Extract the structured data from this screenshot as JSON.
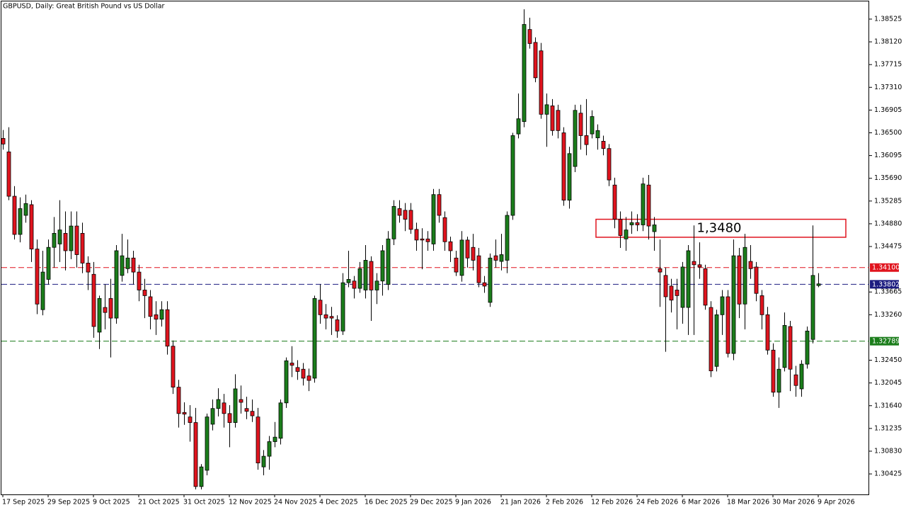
{
  "chart_data": {
    "type": "candlestick",
    "title": "GBPUSD, Daily:  Great British Pound vs US Dollar",
    "categories": [
      "17 Sep 2025",
      null,
      null,
      null,
      null,
      null,
      null,
      null,
      "29 Sep 2025",
      null,
      null,
      null,
      null,
      null,
      null,
      null,
      "9 Oct 2025",
      null,
      null,
      null,
      null,
      null,
      null,
      null,
      "21 Oct 2025",
      null,
      null,
      null,
      null,
      null,
      null,
      null,
      "31 Oct 2025",
      null,
      null,
      null,
      null,
      null,
      null,
      null,
      "12 Nov 2025",
      null,
      null,
      null,
      null,
      null,
      null,
      null,
      "24 Nov 2025",
      null,
      null,
      null,
      null,
      null,
      null,
      null,
      "4 Dec 2025",
      null,
      null,
      null,
      null,
      null,
      null,
      null,
      "16 Dec 2025",
      null,
      null,
      null,
      null,
      null,
      null,
      null,
      "29 Dec 2025",
      null,
      null,
      null,
      null,
      null,
      null,
      null,
      "9 Jan 2026",
      null,
      null,
      null,
      null,
      null,
      null,
      null,
      "21 Jan 2026",
      null,
      null,
      null,
      null,
      null,
      null,
      null,
      "2 Feb 2026",
      null,
      null,
      null,
      null,
      null,
      null,
      null,
      "12 Feb 2026",
      null,
      null,
      null,
      null,
      null,
      null,
      null,
      "24 Feb 2026",
      null,
      null,
      null,
      null,
      null,
      null,
      null,
      "6 Mar 2026",
      null,
      null,
      null,
      null,
      null,
      null,
      null,
      "18 Mar 2026",
      null,
      null,
      null,
      null,
      null,
      null,
      null,
      "30 Mar 2026",
      null,
      null,
      null,
      null,
      null,
      null,
      null,
      "9 Apr 2026"
    ],
    "open": [
      1.364,
      1.3616,
      1.3537,
      1.3469,
      1.3503,
      1.3522,
      1.3443,
      1.3335,
      1.3389,
      1.3446,
      1.3452,
      1.3471,
      1.344,
      1.3484,
      1.3471,
      1.3418,
      1.3398,
      1.3295,
      1.3339,
      1.3355,
      1.332,
      1.3396,
      1.3408,
      1.3427,
      1.3402,
      1.337,
      1.3358,
      1.3326,
      1.3318,
      1.3335,
      1.327,
      1.3197,
      1.3152,
      1.3144,
      1.3134,
      1.302,
      1.3049,
      1.3131,
      1.3159,
      1.3169,
      1.315,
      1.3134,
      1.3175,
      1.3159,
      1.3154,
      1.3144,
      1.3055,
      1.3074,
      1.31,
      1.3106,
      1.3169,
      1.324,
      1.3232,
      1.3229,
      1.3217,
      1.3213,
      1.3352,
      1.3326,
      1.3323,
      1.3317,
      1.3297,
      1.3383,
      1.3386,
      1.3373,
      1.337,
      1.3421,
      1.337,
      1.3386,
      1.338,
      1.3461,
      1.3515,
      1.3512,
      1.3512,
      1.3478,
      1.3461,
      1.3461,
      1.3452,
      1.354,
      1.3499,
      1.3456,
      1.3427,
      1.3396,
      1.3459,
      1.3446,
      1.3431,
      1.3383,
      1.3348,
      1.3431,
      1.3421,
      1.3423,
      1.3503,
      1.3648,
      1.367,
      1.3834,
      1.3811,
      1.3796,
      1.3683,
      1.3698,
      1.369,
      1.365,
      1.353,
      1.359,
      1.3685,
      1.3645,
      1.3648,
      1.3641,
      1.3635,
      1.3622,
      1.3557,
      1.3496,
      1.3461,
      1.3486,
      1.349,
      1.3486,
      1.3557,
      1.3474,
      1.3408,
      1.3396,
      1.3377,
      1.337,
      1.3339,
      1.3339,
      1.3421,
      1.3415,
      1.3408,
      1.3339,
      1.3234,
      1.3326,
      1.3358,
      1.3257,
      1.3431,
      1.3345,
      1.3421,
      1.3411,
      1.336,
      1.3326,
      1.3263,
      1.3188,
      1.3232,
      1.3305,
      1.3219,
      1.3194,
      1.3238,
      1.3282,
      1.3378
    ],
    "high": [
      1.3655,
      1.366,
      1.3555,
      1.3535,
      1.354,
      1.353,
      1.346,
      1.344,
      1.346,
      1.35,
      1.353,
      1.351,
      1.351,
      1.351,
      1.349,
      1.343,
      1.342,
      1.336,
      1.338,
      1.339,
      1.345,
      1.347,
      1.346,
      1.344,
      1.3415,
      1.339,
      1.337,
      1.335,
      1.335,
      1.335,
      1.328,
      1.321,
      1.317,
      1.3165,
      1.316,
      1.306,
      1.315,
      1.3175,
      1.3195,
      1.3185,
      1.3165,
      1.322,
      1.32,
      1.318,
      1.3175,
      1.316,
      1.3085,
      1.311,
      1.3135,
      1.3175,
      1.325,
      1.327,
      1.3245,
      1.324,
      1.323,
      1.336,
      1.338,
      1.3345,
      1.334,
      1.3325,
      1.34,
      1.344,
      1.3395,
      1.342,
      1.345,
      1.343,
      1.34,
      1.345,
      1.3475,
      1.353,
      1.353,
      1.3525,
      1.3525,
      1.349,
      1.348,
      1.3475,
      1.355,
      1.355,
      1.351,
      1.3465,
      1.344,
      1.3475,
      1.3465,
      1.347,
      1.3445,
      1.3395,
      1.3435,
      1.346,
      1.347,
      1.351,
      1.365,
      1.372,
      1.387,
      1.3855,
      1.382,
      1.381,
      1.372,
      1.371,
      1.37,
      1.366,
      1.3625,
      1.37,
      1.37,
      1.371,
      1.369,
      1.3665,
      1.3645,
      1.363,
      1.357,
      1.351,
      1.35,
      1.351,
      1.3505,
      1.357,
      1.3575,
      1.35,
      1.346,
      1.341,
      1.339,
      1.339,
      1.342,
      1.345,
      1.3485,
      1.3455,
      1.3415,
      1.335,
      1.3335,
      1.337,
      1.337,
      1.346,
      1.3445,
      1.347,
      1.345,
      1.342,
      1.337,
      1.334,
      1.3275,
      1.325,
      1.333,
      1.3315,
      1.3235,
      1.3245,
      1.3305,
      1.3485,
      1.34
    ],
    "low": [
      1.362,
      1.353,
      1.346,
      1.3455,
      1.349,
      1.342,
      1.3327,
      1.3325,
      1.338,
      1.341,
      1.342,
      1.3405,
      1.3425,
      1.341,
      1.34,
      1.337,
      1.3285,
      1.3265,
      1.33,
      1.325,
      1.331,
      1.3385,
      1.34,
      1.338,
      1.335,
      1.332,
      1.33,
      1.329,
      1.3305,
      1.3255,
      1.3185,
      1.3125,
      1.313,
      1.31,
      1.3015,
      1.3015,
      1.304,
      1.312,
      1.3145,
      1.3125,
      1.309,
      1.3125,
      1.315,
      1.314,
      1.3135,
      1.305,
      1.304,
      1.305,
      1.309,
      1.3095,
      1.316,
      1.3215,
      1.321,
      1.32,
      1.319,
      1.3205,
      1.331,
      1.33,
      1.329,
      1.3285,
      1.329,
      1.3375,
      1.3355,
      1.3365,
      1.3355,
      1.3315,
      1.3345,
      1.336,
      1.337,
      1.345,
      1.349,
      1.3475,
      1.347,
      1.344,
      1.3407,
      1.344,
      1.344,
      1.349,
      1.344,
      1.342,
      1.3395,
      1.3385,
      1.341,
      1.3405,
      1.3375,
      1.3365,
      1.334,
      1.341,
      1.3405,
      1.34,
      1.3495,
      1.364,
      1.366,
      1.38,
      1.374,
      1.3675,
      1.3625,
      1.3645,
      1.364,
      1.352,
      1.3515,
      1.358,
      1.362,
      1.361,
      1.364,
      1.362,
      1.361,
      1.3555,
      1.348,
      1.3445,
      1.344,
      1.347,
      1.3475,
      1.3475,
      1.346,
      1.344,
      1.334,
      1.326,
      1.333,
      1.33,
      1.331,
      1.329,
      1.329,
      1.339,
      1.3335,
      1.3215,
      1.3225,
      1.329,
      1.325,
      1.3245,
      1.332,
      1.33,
      1.339,
      1.335,
      1.33,
      1.3255,
      1.318,
      1.316,
      1.3225,
      1.319,
      1.318,
      1.318,
      1.323,
      1.3275,
      1.3375
    ],
    "close": [
      1.363,
      1.3537,
      1.3469,
      1.3515,
      1.3524,
      1.3443,
      1.3345,
      1.3402,
      1.3446,
      1.3471,
      1.3477,
      1.344,
      1.3484,
      1.3433,
      1.3418,
      1.3402,
      1.3305,
      1.3355,
      1.333,
      1.332,
      1.344,
      1.3431,
      1.3427,
      1.3402,
      1.337,
      1.336,
      1.3323,
      1.3318,
      1.3335,
      1.327,
      1.3197,
      1.315,
      1.3149,
      1.3134,
      1.302,
      1.3055,
      1.3144,
      1.3159,
      1.3175,
      1.315,
      1.3134,
      1.3194,
      1.317,
      1.3154,
      1.3146,
      1.3062,
      1.3074,
      1.31,
      1.3108,
      1.3169,
      1.3244,
      1.3236,
      1.3225,
      1.3213,
      1.3209,
      1.3355,
      1.3326,
      1.332,
      1.332,
      1.3297,
      1.3383,
      1.3389,
      1.3373,
      1.3408,
      1.3423,
      1.337,
      1.3386,
      1.344,
      1.3461,
      1.3519,
      1.3503,
      1.3496,
      1.3478,
      1.3459,
      1.3459,
      1.3456,
      1.354,
      1.3503,
      1.3456,
      1.344,
      1.3402,
      1.3459,
      1.3427,
      1.3423,
      1.3383,
      1.3377,
      1.3427,
      1.3423,
      1.3433,
      1.3503,
      1.3645,
      1.3675,
      1.3843,
      1.3809,
      1.3748,
      1.3683,
      1.37,
      1.3654,
      1.3654,
      1.353,
      1.3613,
      1.369,
      1.3645,
      1.3629,
      1.3679,
      1.3654,
      1.3622,
      1.3566,
      1.3496,
      1.3467,
      1.3477,
      1.349,
      1.3486,
      1.3559,
      1.3484,
      1.3486,
      1.3402,
      1.3358,
      1.3352,
      1.336,
      1.3411,
      1.344,
      1.3415,
      1.3411,
      1.3343,
      1.3226,
      1.3326,
      1.3358,
      1.3257,
      1.3431,
      1.3345,
      1.3446,
      1.3408,
      1.3364,
      1.3326,
      1.3263,
      1.3188,
      1.3229,
      1.3307,
      1.3229,
      1.32,
      1.3238,
      1.3297,
      1.3396,
      1.3381
    ],
    "up_color": "#1b7d1b",
    "down_color": "#e0141e",
    "ylim": [
      1.3006,
      1.3884
    ],
    "yticks": [
      1.38525,
      {
        "value": 1.3812,
        "label": "1.38120"
      },
      1.37715,
      {
        "value": 1.3731,
        "label": "1.37310"
      },
      1.36905,
      {
        "value": 1.365,
        "label": "1.36500"
      },
      1.36095,
      {
        "value": 1.3569,
        "label": "1.35690"
      },
      1.35285,
      {
        "value": 1.3488,
        "label": "1.34880"
      },
      1.34475,
      1.33665,
      {
        "value": 1.3326,
        "label": "1.33260"
      },
      {
        "value": 1.3245,
        "label": "1.32450"
      },
      1.32045,
      {
        "value": 1.3164,
        "label": "1.31640"
      },
      1.31235,
      {
        "value": 1.3083,
        "label": "1.30830"
      },
      1.30425
    ],
    "levels": [
      {
        "value": 1.341,
        "label": "1.34100",
        "color": "#e0141e"
      },
      {
        "value": 1.33802,
        "color": "#1c1c80"
      },
      {
        "value": 1.32789,
        "color": "#1b7d1b"
      }
    ],
    "zone": {
      "text": "1,3480",
      "low": 1.3464,
      "high": 1.3496,
      "color": "#e0141e"
    }
  }
}
